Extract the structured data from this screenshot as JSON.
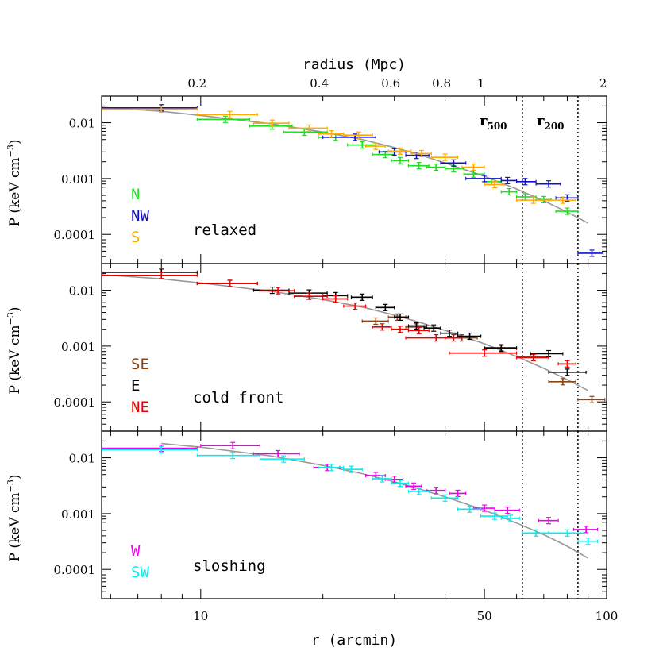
{
  "chart_data": [
    {
      "type": "scatter",
      "panel_label": "relaxed",
      "xlabel": "r (arcmin)",
      "top_axis_label": "radius (Mpc)",
      "ylabel": "P (keV cm^-3)",
      "xlim": [
        5.7,
        100
      ],
      "ylim": [
        3e-05,
        0.03
      ],
      "xscale": "log",
      "yscale": "log",
      "reference_lines": [
        {
          "label": "r500",
          "x": 62
        },
        {
          "label": "r200",
          "x": 85
        }
      ],
      "legend": [
        "N",
        "NW",
        "S"
      ],
      "series": [
        {
          "name": "N",
          "color": "#22dd22",
          "points": [
            {
              "x": 11.5,
              "xlo": 9.8,
              "xhi": 13.2,
              "y": 0.0115
            },
            {
              "x": 15.0,
              "xlo": 13.2,
              "xhi": 16.8,
              "y": 0.0087
            },
            {
              "x": 18.0,
              "xlo": 16.0,
              "xhi": 20.5,
              "y": 0.0068
            },
            {
              "x": 21.5,
              "xlo": 19.5,
              "xhi": 24.0,
              "y": 0.0055
            },
            {
              "x": 25.0,
              "xlo": 23.0,
              "xhi": 27.0,
              "y": 0.004
            },
            {
              "x": 28.5,
              "xlo": 26.5,
              "xhi": 30.0,
              "y": 0.0027
            },
            {
              "x": 31.0,
              "xlo": 29.5,
              "xhi": 32.5,
              "y": 0.0021
            },
            {
              "x": 34.5,
              "xlo": 32.5,
              "xhi": 36.5,
              "y": 0.0017
            },
            {
              "x": 38.0,
              "xlo": 36.0,
              "xhi": 40.0,
              "y": 0.0016
            },
            {
              "x": 42.0,
              "xlo": 40.0,
              "xhi": 44.5,
              "y": 0.0015
            },
            {
              "x": 47.0,
              "xlo": 44.5,
              "xhi": 50.0,
              "y": 0.0012
            },
            {
              "x": 52.0,
              "xlo": 50.0,
              "xhi": 55.0,
              "y": 0.00088
            },
            {
              "x": 57.5,
              "xlo": 55.0,
              "xhi": 60.0,
              "y": 0.00058
            },
            {
              "x": 63.0,
              "xlo": 60.0,
              "xhi": 67.0,
              "y": 0.00047
            },
            {
              "x": 70.0,
              "xlo": 67.0,
              "xhi": 73.0,
              "y": 0.00042
            },
            {
              "x": 80.0,
              "xlo": 75.0,
              "xhi": 85.0,
              "y": 0.00026
            }
          ]
        },
        {
          "name": "NW",
          "color": "#1111cc",
          "points": [
            {
              "x": 8.0,
              "xlo": 5.7,
              "xhi": 9.8,
              "y": 0.0185
            },
            {
              "x": 24.0,
              "xlo": 20.0,
              "xhi": 27.0,
              "y": 0.0055
            },
            {
              "x": 30.0,
              "xlo": 27.5,
              "xhi": 32.0,
              "y": 0.003
            },
            {
              "x": 34.0,
              "xlo": 32.0,
              "xhi": 36.5,
              "y": 0.0026
            },
            {
              "x": 42.0,
              "xlo": 39.0,
              "xhi": 45.0,
              "y": 0.0019
            },
            {
              "x": 50.0,
              "xlo": 45.0,
              "xhi": 55.0,
              "y": 0.001
            },
            {
              "x": 57.0,
              "xlo": 55.0,
              "xhi": 60.0,
              "y": 0.00092
            },
            {
              "x": 63.0,
              "xlo": 60.0,
              "xhi": 67.0,
              "y": 0.00088
            },
            {
              "x": 72.0,
              "xlo": 67.0,
              "xhi": 77.0,
              "y": 0.0008
            },
            {
              "x": 80.0,
              "xlo": 75.0,
              "xhi": 85.0,
              "y": 0.00045
            },
            {
              "x": 92.0,
              "xlo": 85.0,
              "xhi": 98.0,
              "y": 4.6e-05
            }
          ]
        },
        {
          "name": "S",
          "color": "#ffaa00",
          "points": [
            {
              "x": 8.0,
              "xlo": 5.7,
              "xhi": 9.8,
              "y": 0.0175
            },
            {
              "x": 11.8,
              "xlo": 9.8,
              "xhi": 13.8,
              "y": 0.014
            },
            {
              "x": 15.0,
              "xlo": 13.5,
              "xhi": 16.5,
              "y": 0.0098
            },
            {
              "x": 18.5,
              "xlo": 16.5,
              "xhi": 20.5,
              "y": 0.008
            },
            {
              "x": 21.0,
              "xlo": 19.5,
              "xhi": 22.5,
              "y": 0.0063
            },
            {
              "x": 24.5,
              "xlo": 22.5,
              "xhi": 26.5,
              "y": 0.006
            },
            {
              "x": 27.0,
              "xlo": 25.5,
              "xhi": 28.5,
              "y": 0.0038
            },
            {
              "x": 31.0,
              "xlo": 29.0,
              "xhi": 33.0,
              "y": 0.0031
            },
            {
              "x": 35.0,
              "xlo": 33.0,
              "xhi": 37.0,
              "y": 0.0028
            },
            {
              "x": 40.0,
              "xlo": 37.0,
              "xhi": 43.0,
              "y": 0.0024
            },
            {
              "x": 47.0,
              "xlo": 44.0,
              "xhi": 50.0,
              "y": 0.0016
            },
            {
              "x": 53.0,
              "xlo": 50.0,
              "xhi": 56.0,
              "y": 0.00078
            },
            {
              "x": 66.0,
              "xlo": 60.0,
              "xhi": 72.0,
              "y": 0.00041
            },
            {
              "x": 78.0,
              "xlo": 72.0,
              "xhi": 84.0,
              "y": 0.00041
            }
          ]
        }
      ],
      "model_curve": {
        "x": [
          5.7,
          8,
          10,
          15,
          20,
          25,
          30,
          35,
          40,
          50,
          60,
          70,
          80,
          90
        ],
        "y": [
          0.019,
          0.016,
          0.0135,
          0.0095,
          0.0068,
          0.005,
          0.0036,
          0.0026,
          0.0019,
          0.0011,
          0.00065,
          0.0004,
          0.00025,
          0.00016
        ]
      }
    },
    {
      "type": "scatter",
      "panel_label": "cold front",
      "ylabel": "P (keV cm^-3)",
      "xlim": [
        5.7,
        100
      ],
      "ylim": [
        3e-05,
        0.03
      ],
      "xscale": "log",
      "yscale": "log",
      "legend": [
        "SE",
        "E",
        "NE"
      ],
      "series": [
        {
          "name": "SE",
          "color": "#8b4513",
          "points": [
            {
              "x": 27.0,
              "xlo": 25.0,
              "xhi": 29.0,
              "y": 0.0028
            },
            {
              "x": 30.5,
              "xlo": 29.0,
              "xhi": 32.0,
              "y": 0.0033
            },
            {
              "x": 34.0,
              "xlo": 32.0,
              "xhi": 36.0,
              "y": 0.0022
            },
            {
              "x": 44.0,
              "xlo": 40.0,
              "xhi": 48.0,
              "y": 0.0014
            },
            {
              "x": 55.0,
              "xlo": 50.0,
              "xhi": 60.0,
              "y": 0.0009
            },
            {
              "x": 66.0,
              "xlo": 60.0,
              "xhi": 72.0,
              "y": 0.00064
            },
            {
              "x": 78.0,
              "xlo": 72.0,
              "xhi": 84.0,
              "y": 0.00023
            },
            {
              "x": 92.0,
              "xlo": 85.0,
              "xhi": 99.0,
              "y": 0.00011
            }
          ]
        },
        {
          "name": "E",
          "color": "#000000",
          "points": [
            {
              "x": 8.0,
              "xlo": 5.7,
              "xhi": 9.8,
              "y": 0.021
            },
            {
              "x": 11.8,
              "xlo": 9.8,
              "xhi": 13.8,
              "y": 0.0132
            },
            {
              "x": 15.0,
              "xlo": 13.5,
              "xhi": 16.5,
              "y": 0.01
            },
            {
              "x": 18.5,
              "xlo": 16.5,
              "xhi": 20.5,
              "y": 0.0089
            },
            {
              "x": 21.5,
              "xlo": 20.0,
              "xhi": 23.0,
              "y": 0.008
            },
            {
              "x": 25.0,
              "xlo": 23.5,
              "xhi": 26.5,
              "y": 0.0075
            },
            {
              "x": 28.5,
              "xlo": 27.0,
              "xhi": 30.0,
              "y": 0.0049
            },
            {
              "x": 31.0,
              "xlo": 30.0,
              "xhi": 32.5,
              "y": 0.0033
            },
            {
              "x": 34.0,
              "xlo": 32.5,
              "xhi": 36.0,
              "y": 0.0023
            },
            {
              "x": 37.5,
              "xlo": 35.5,
              "xhi": 39.0,
              "y": 0.0021
            },
            {
              "x": 41.0,
              "xlo": 39.0,
              "xhi": 43.0,
              "y": 0.0017
            },
            {
              "x": 46.0,
              "xlo": 43.0,
              "xhi": 49.0,
              "y": 0.0015
            },
            {
              "x": 55.0,
              "xlo": 50.0,
              "xhi": 60.0,
              "y": 0.00093
            },
            {
              "x": 72.0,
              "xlo": 65.0,
              "xhi": 78.0,
              "y": 0.00073
            },
            {
              "x": 80.0,
              "xlo": 72.0,
              "xhi": 89.0,
              "y": 0.00034
            }
          ]
        },
        {
          "name": "NE",
          "color": "#ee0000",
          "points": [
            {
              "x": 8.0,
              "xlo": 5.7,
              "xhi": 9.8,
              "y": 0.0185
            },
            {
              "x": 11.8,
              "xlo": 9.8,
              "xhi": 13.8,
              "y": 0.0133
            },
            {
              "x": 15.5,
              "xlo": 14.0,
              "xhi": 17.0,
              "y": 0.0098
            },
            {
              "x": 18.5,
              "xlo": 17.0,
              "xhi": 20.5,
              "y": 0.0078
            },
            {
              "x": 21.5,
              "xlo": 20.0,
              "xhi": 23.0,
              "y": 0.007
            },
            {
              "x": 24.0,
              "xlo": 22.5,
              "xhi": 25.5,
              "y": 0.0052
            },
            {
              "x": 28.0,
              "xlo": 26.5,
              "xhi": 29.5,
              "y": 0.0022
            },
            {
              "x": 31.0,
              "xlo": 29.5,
              "xhi": 32.5,
              "y": 0.002
            },
            {
              "x": 34.5,
              "xlo": 32.5,
              "xhi": 36.5,
              "y": 0.0019
            },
            {
              "x": 38.0,
              "xlo": 32.0,
              "xhi": 44.0,
              "y": 0.0014
            },
            {
              "x": 42.0,
              "xlo": 40.0,
              "xhi": 44.0,
              "y": 0.0014
            },
            {
              "x": 50.0,
              "xlo": 41.0,
              "xhi": 60.0,
              "y": 0.00075
            },
            {
              "x": 66.0,
              "xlo": 60.0,
              "xhi": 72.0,
              "y": 0.00062
            },
            {
              "x": 80.0,
              "xlo": 76.0,
              "xhi": 84.0,
              "y": 0.00048
            }
          ]
        }
      ],
      "model_curve": {
        "x": [
          5.7,
          8,
          10,
          15,
          20,
          25,
          30,
          35,
          40,
          50,
          60,
          70,
          80,
          90
        ],
        "y": [
          0.019,
          0.016,
          0.0135,
          0.0095,
          0.0068,
          0.005,
          0.0036,
          0.0026,
          0.0019,
          0.0011,
          0.00065,
          0.0004,
          0.00025,
          0.00016
        ]
      }
    },
    {
      "type": "scatter",
      "panel_label": "sloshing",
      "ylabel": "P (keV cm^-3)",
      "xlim": [
        5.7,
        100
      ],
      "ylim": [
        3e-05,
        0.03
      ],
      "xscale": "log",
      "yscale": "log",
      "legend": [
        "W",
        "SW"
      ],
      "series": [
        {
          "name": "W",
          "color": "#ee00ee",
          "points": [
            {
              "x": 8.0,
              "xlo": 5.7,
              "xhi": 9.8,
              "y": 0.0148
            },
            {
              "x": 12.0,
              "xlo": 10.0,
              "xhi": 14.0,
              "y": 0.0165
            },
            {
              "x": 15.5,
              "xlo": 13.5,
              "xhi": 17.5,
              "y": 0.0118
            },
            {
              "x": 20.5,
              "xlo": 19.0,
              "xhi": 22.0,
              "y": 0.0067
            },
            {
              "x": 27.0,
              "xlo": 25.5,
              "xhi": 28.5,
              "y": 0.0048
            },
            {
              "x": 30.0,
              "xlo": 28.5,
              "xhi": 31.5,
              "y": 0.0041
            },
            {
              "x": 33.5,
              "xlo": 32.0,
              "xhi": 35.0,
              "y": 0.0031
            },
            {
              "x": 38.0,
              "xlo": 36.0,
              "xhi": 40.0,
              "y": 0.0026
            },
            {
              "x": 43.0,
              "xlo": 41.0,
              "xhi": 45.0,
              "y": 0.0023
            },
            {
              "x": 50.0,
              "xlo": 47.0,
              "xhi": 53.0,
              "y": 0.00125
            },
            {
              "x": 57.0,
              "xlo": 53.0,
              "xhi": 61.0,
              "y": 0.00115
            },
            {
              "x": 72.0,
              "xlo": 68.0,
              "xhi": 76.0,
              "y": 0.00075
            },
            {
              "x": 89.0,
              "xlo": 83.0,
              "xhi": 95.0,
              "y": 0.00052
            }
          ]
        },
        {
          "name": "SW",
          "color": "#00eeee",
          "points": [
            {
              "x": 8.0,
              "xlo": 5.7,
              "xhi": 9.8,
              "y": 0.014
            },
            {
              "x": 12.0,
              "xlo": 9.8,
              "xhi": 14.0,
              "y": 0.011
            },
            {
              "x": 16.0,
              "xlo": 14.0,
              "xhi": 18.0,
              "y": 0.0095
            },
            {
              "x": 21.0,
              "xlo": 19.5,
              "xhi": 22.5,
              "y": 0.0067
            },
            {
              "x": 23.5,
              "xlo": 22.5,
              "xhi": 25.0,
              "y": 0.0062
            },
            {
              "x": 28.0,
              "xlo": 26.5,
              "xhi": 29.5,
              "y": 0.0042
            },
            {
              "x": 31.0,
              "xlo": 29.5,
              "xhi": 32.5,
              "y": 0.0035
            },
            {
              "x": 34.5,
              "xlo": 32.5,
              "xhi": 36.5,
              "y": 0.0025
            },
            {
              "x": 40.0,
              "xlo": 37.0,
              "xhi": 43.0,
              "y": 0.0019
            },
            {
              "x": 46.0,
              "xlo": 43.0,
              "xhi": 49.0,
              "y": 0.0012
            },
            {
              "x": 53.0,
              "xlo": 49.0,
              "xhi": 57.0,
              "y": 0.0009
            },
            {
              "x": 58.0,
              "xlo": 55.0,
              "xhi": 61.0,
              "y": 0.00082
            },
            {
              "x": 67.0,
              "xlo": 62.0,
              "xhi": 72.0,
              "y": 0.00045
            },
            {
              "x": 80.0,
              "xlo": 72.0,
              "xhi": 88.0,
              "y": 0.00045
            },
            {
              "x": 90.0,
              "xlo": 85.0,
              "xhi": 95.0,
              "y": 0.00032
            }
          ]
        }
      ],
      "model_curve": {
        "x": [
          8,
          10,
          15,
          20,
          25,
          30,
          35,
          40,
          50,
          60,
          70,
          80,
          90
        ],
        "y": [
          0.018,
          0.0155,
          0.0107,
          0.0073,
          0.0052,
          0.0037,
          0.0027,
          0.002,
          0.00115,
          0.00068,
          0.00042,
          0.00026,
          0.00016
        ]
      }
    }
  ],
  "axes": {
    "bottom_ticks": [
      {
        "value": 10,
        "label": "10"
      },
      {
        "value": 50,
        "label": "50"
      },
      {
        "value": 100,
        "label": "100"
      }
    ],
    "top_ticks": [
      {
        "r_arcmin": 9.8,
        "label": "0.2"
      },
      {
        "r_arcmin": 19.6,
        "label": "0.4"
      },
      {
        "r_arcmin": 29.4,
        "label": "0.6"
      },
      {
        "r_arcmin": 39.2,
        "label": "0.8"
      },
      {
        "r_arcmin": 49.0,
        "label": "1"
      },
      {
        "r_arcmin": 98.0,
        "label": "2"
      }
    ],
    "y_ticks": [
      {
        "value": 0.01,
        "label": "0.01"
      },
      {
        "value": 0.001,
        "label": "0.001"
      },
      {
        "value": 0.0001,
        "label": "0.0001"
      }
    ],
    "ylabel_main": "P (keV cm",
    "ylabel_exp": "−3",
    "ylabel_close": ")",
    "xlabel": "r (arcmin)",
    "top_label": "radius (Mpc)",
    "r500_label_main": "r",
    "r500_label_sub": "500",
    "r200_label_main": "r",
    "r200_label_sub": "200"
  }
}
